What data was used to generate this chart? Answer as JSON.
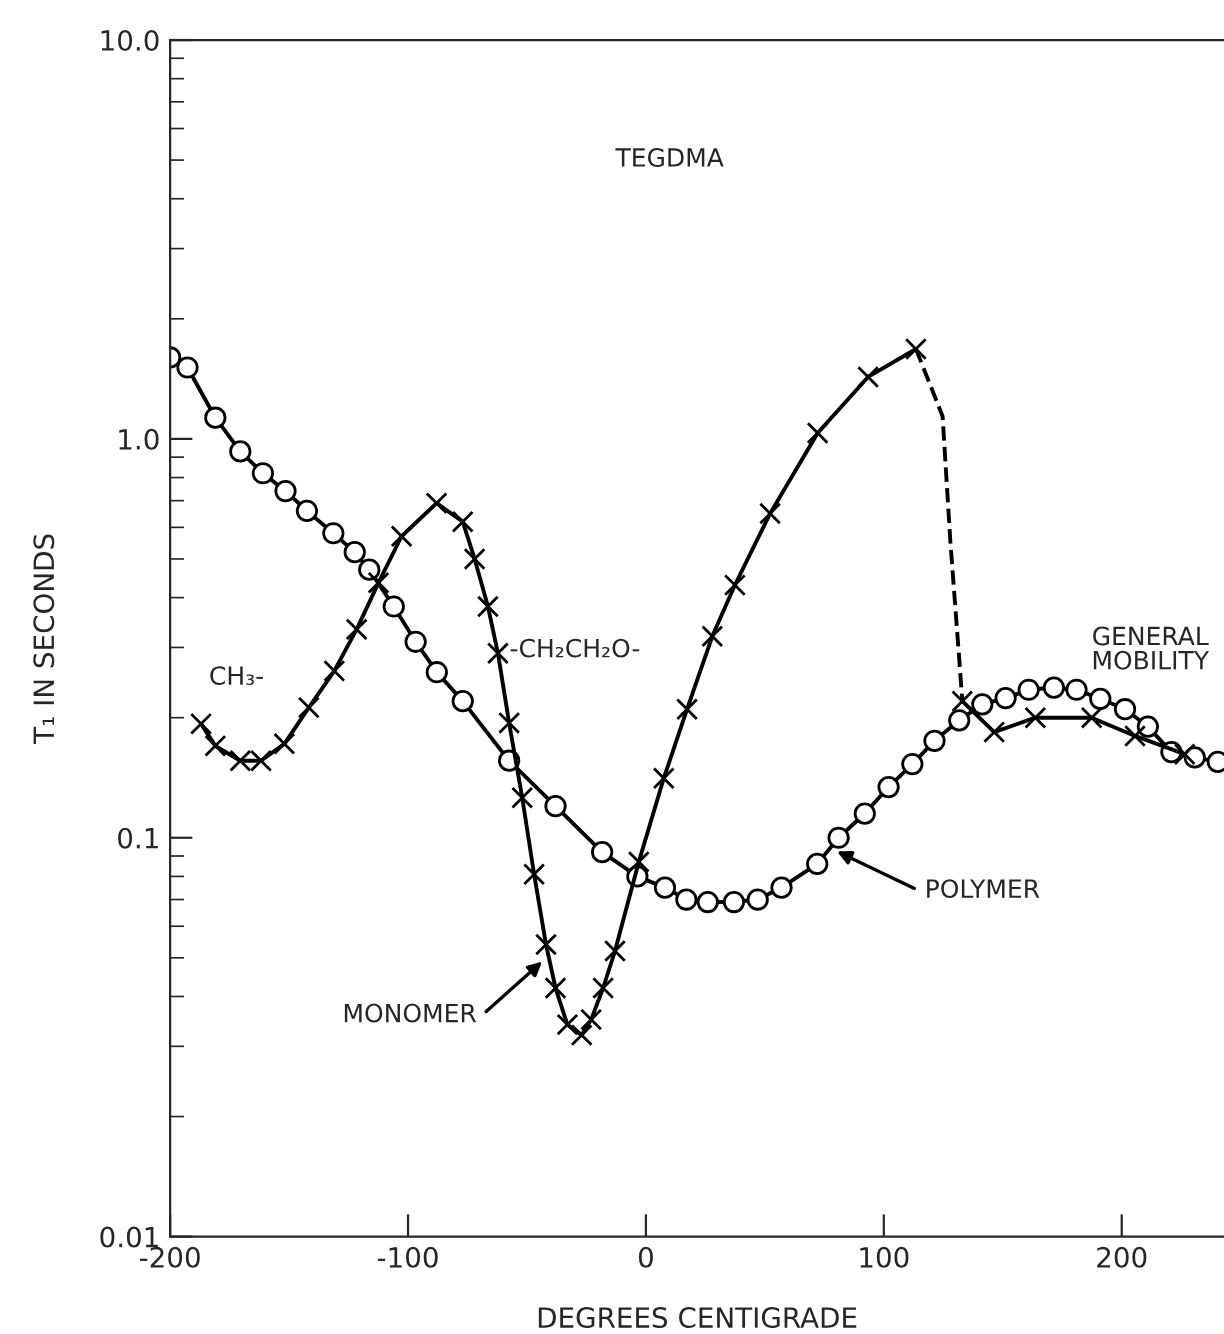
{
  "chart_data": {
    "type": "line",
    "title": "TEGDMA",
    "xlabel": "DEGREES CENTIGRADE",
    "ylabel": "T₁ IN SECONDS",
    "log": "y",
    "xlim": [
      -200,
      243
    ],
    "ylim": [
      0.01,
      10
    ],
    "xticks": [
      -200,
      -100,
      0,
      100,
      200
    ],
    "yticks": [
      {
        "value": 0.01,
        "label": "0.01"
      },
      {
        "value": 0.1,
        "label": "0.1"
      },
      {
        "value": 1,
        "label": "1.0"
      },
      {
        "value": 10,
        "label": "10.0"
      }
    ],
    "grid": false,
    "legend": false,
    "series": [
      {
        "color": "#000000",
        "marker": "circle",
        "line_style": "solid",
        "x": [
          -200,
          -192.7,
          -181,
          -170.5,
          -161,
          -151.5,
          -142.5,
          -131.4,
          -122.4,
          -116.3,
          -106,
          -96.8,
          -87.9,
          -77,
          -57.5,
          -38,
          -18.4,
          -3.6,
          8,
          17,
          26,
          37,
          47,
          57,
          72,
          81,
          92,
          102,
          112,
          121.3,
          131.7,
          141.4,
          151.2,
          160.9,
          171.5,
          181,
          191,
          201.4,
          211,
          220.9,
          230.7,
          240.4
        ],
        "values": [
          1.6,
          1.51,
          1.13,
          0.93,
          0.82,
          0.74,
          0.66,
          0.58,
          0.52,
          0.47,
          0.38,
          0.31,
          0.26,
          0.22,
          0.156,
          0.12,
          0.092,
          0.08,
          0.075,
          0.07,
          0.069,
          0.069,
          0.07,
          0.075,
          0.086,
          0.1,
          0.115,
          0.134,
          0.153,
          0.175,
          0.197,
          0.216,
          0.224,
          0.235,
          0.238,
          0.235,
          0.223,
          0.21,
          0.19,
          0.164,
          0.159,
          0.155
        ]
      },
      {
        "color": "#000000",
        "marker": "cross",
        "line_style": "solid",
        "x": [
          -187,
          -181,
          -170.5,
          -161.8,
          -152,
          -141.7,
          -131,
          -121.6,
          -112.4,
          -102.7,
          -88,
          -77,
          -72,
          -66.4,
          -62.2,
          -57.5,
          -52,
          -47,
          -42,
          -38,
          -33,
          -27,
          -23,
          -18,
          -13,
          -3,
          7.5,
          17.3,
          27.9,
          37.4,
          52.2,
          72.2,
          93.4,
          113.5
        ],
        "values": [
          0.193,
          0.17,
          0.156,
          0.156,
          0.172,
          0.212,
          0.262,
          0.333,
          0.436,
          0.57,
          0.69,
          0.62,
          0.5,
          0.38,
          0.29,
          0.194,
          0.126,
          0.081,
          0.054,
          0.042,
          0.034,
          0.032,
          0.035,
          0.042,
          0.052,
          0.087,
          0.141,
          0.21,
          0.32,
          0.43,
          0.65,
          1.035,
          1.43,
          1.68
        ]
      },
      {
        "color": "#000000",
        "marker": "none",
        "line_style": "dashed",
        "x": [
          113.5,
          124.7,
          128,
          131.6,
          133
        ],
        "values": [
          1.68,
          1.14,
          0.55,
          0.286,
          0.22
        ]
      },
      {
        "color": "#000000",
        "marker": "cross",
        "line_style": "solid",
        "x": [
          133,
          146.4,
          163.7,
          187.4,
          205.6,
          226.5
        ],
        "values": [
          0.22,
          0.184,
          0.2,
          0.2,
          0.18,
          0.162
        ]
      }
    ],
    "annotations": [
      "CH₃-",
      "-CH₂CH₂O-",
      "MONOMER",
      "POLYMER",
      "GENERAL\nMOBILITY"
    ]
  }
}
